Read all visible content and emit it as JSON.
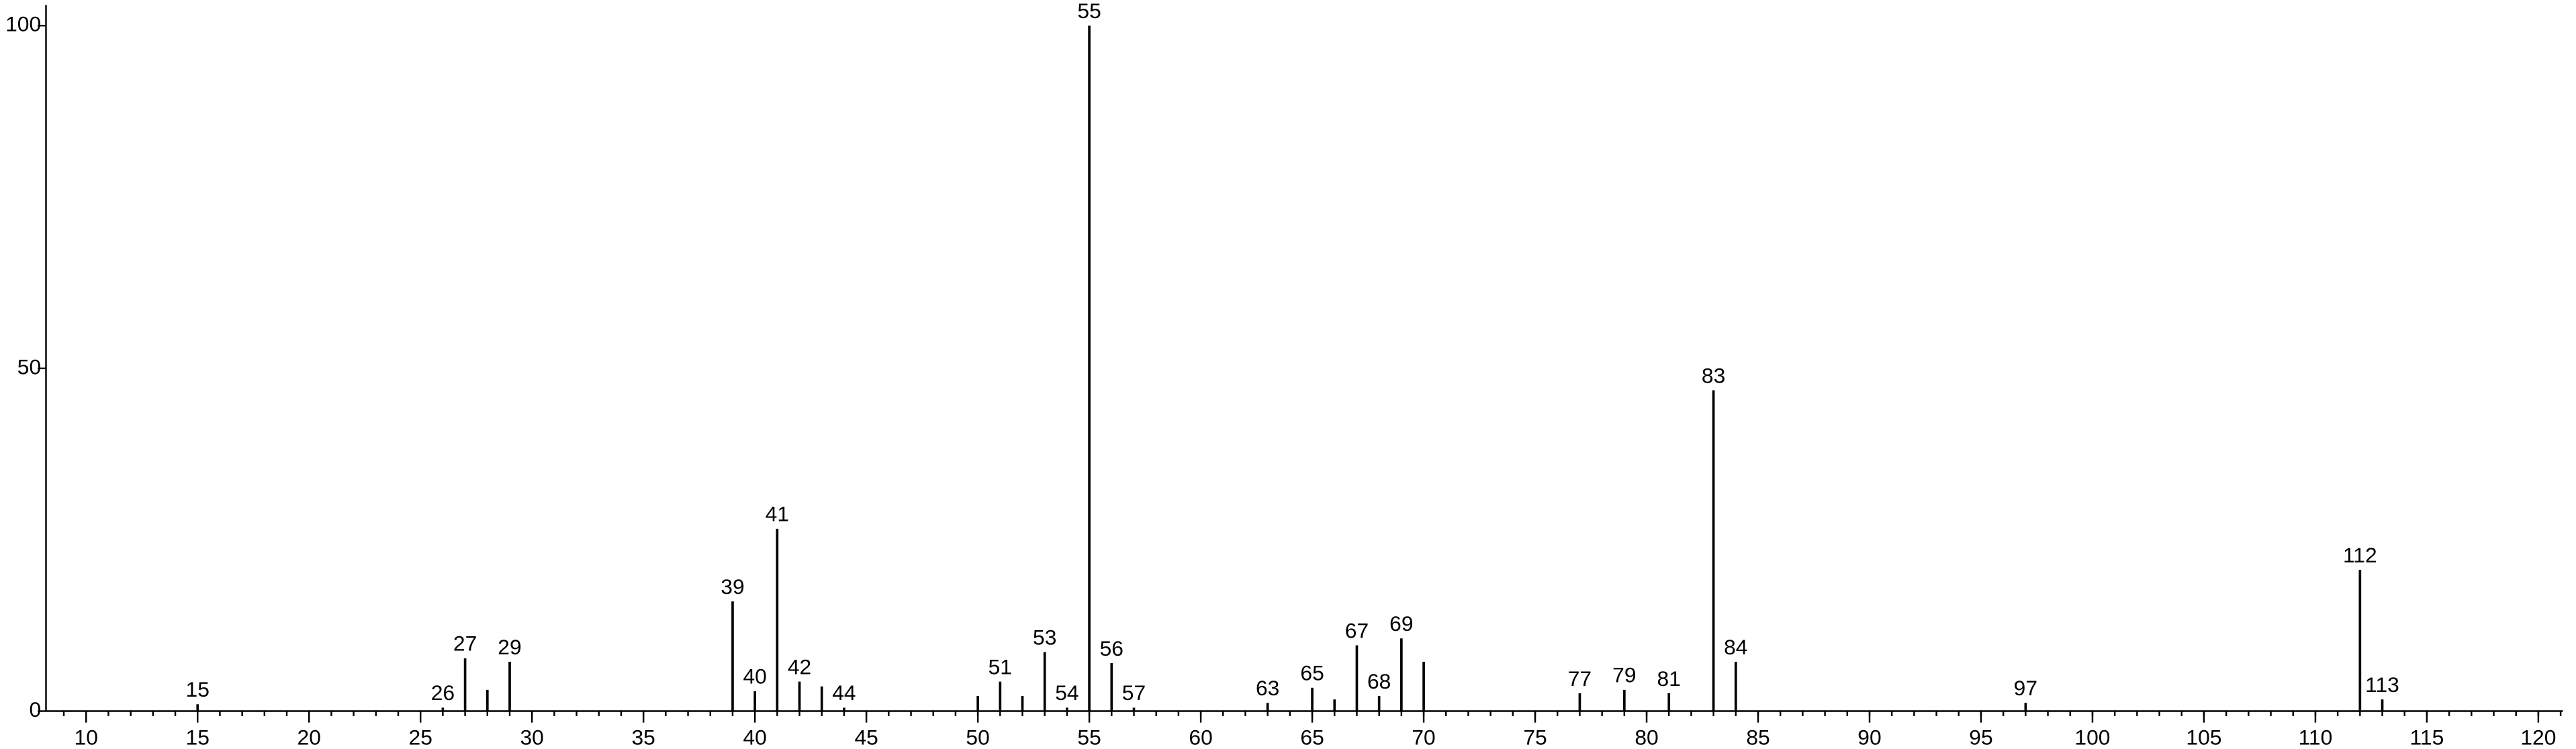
{
  "chart_data": {
    "type": "stem",
    "x": [
      15,
      26,
      27,
      28,
      29,
      39,
      40,
      41,
      42,
      43,
      44,
      50,
      51,
      52,
      53,
      54,
      55,
      56,
      57,
      63,
      65,
      66,
      67,
      68,
      69,
      70,
      77,
      79,
      81,
      83,
      84,
      97,
      112,
      113
    ],
    "values": [
      1,
      0.5,
      7.7,
      3.1,
      7.2,
      16,
      2.9,
      26.6,
      4.3,
      3.6,
      0.5,
      2.2,
      4.3,
      2.2,
      8.6,
      0.5,
      100,
      7,
      0.5,
      1.2,
      3.4,
      1.7,
      9.6,
      2.2,
      10.6,
      7.2,
      2.6,
      3.1,
      2.6,
      46.8,
      7.2,
      1.2,
      20.6,
      1.7
    ],
    "labels": [
      "15",
      "26",
      "27",
      null,
      "29",
      "39",
      "40",
      "41",
      "42",
      null,
      "44",
      null,
      "51",
      null,
      "53",
      "54",
      "55",
      "56",
      "57",
      "63",
      "65",
      null,
      "67",
      "68",
      "69",
      null,
      "77",
      "79",
      "81",
      "83",
      "84",
      "97",
      "112",
      "113"
    ],
    "color": "#000000",
    "xlim": [
      8.2,
      121.1
    ],
    "ylim": [
      0,
      103
    ],
    "xticks": [
      10,
      15,
      20,
      25,
      30,
      35,
      40,
      45,
      50,
      55,
      60,
      65,
      70,
      75,
      80,
      85,
      90,
      95,
      100,
      105,
      110,
      115,
      120
    ],
    "yticks": [
      0,
      50,
      100
    ],
    "xminorstep": 1
  }
}
